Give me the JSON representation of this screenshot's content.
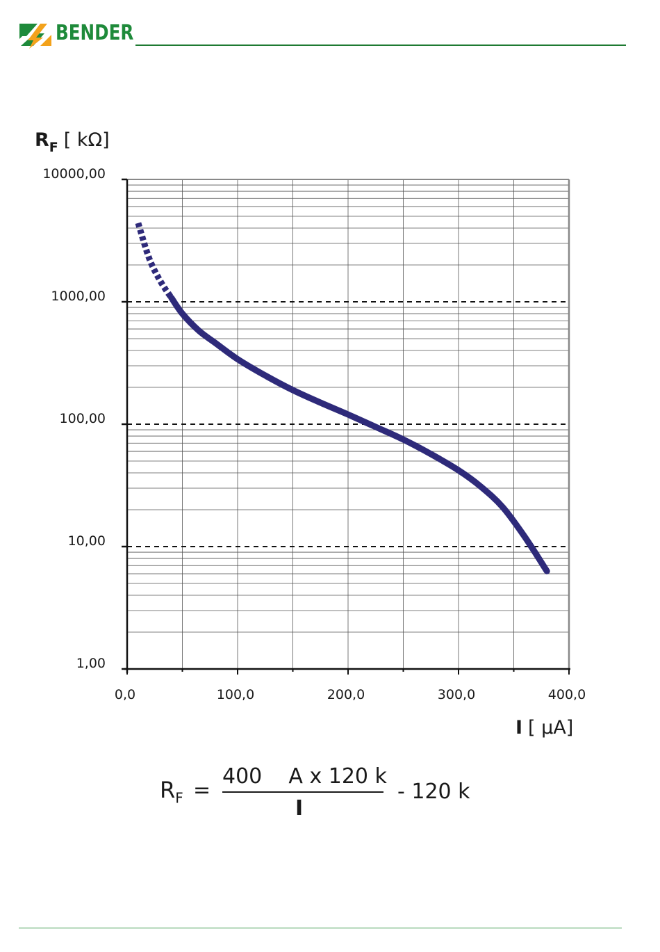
{
  "header": {
    "brand": "BENDER",
    "logo_colors": {
      "green": "#1e8a3a",
      "orange": "#f3a21b"
    }
  },
  "chart_data": {
    "type": "line",
    "ylabel_main": "R",
    "ylabel_sub": "F",
    "ylabel_unit": "[ kΩ]",
    "xlabel_main": "I",
    "xlabel_unit": "[ µA]",
    "y_scale": "log",
    "ylim": [
      1,
      10000
    ],
    "xlim": [
      0,
      400
    ],
    "x_ticks": [
      "0,0",
      "100,0",
      "200,0",
      "300,0",
      "400,0"
    ],
    "y_ticks": [
      "1,00",
      "10,00",
      "100,00",
      "1000,00",
      "10000,00"
    ],
    "grid": true,
    "dashed_reference_lines": [
      10,
      100,
      1000
    ],
    "series": [
      {
        "style": "dotted",
        "color": "#2e2a7a",
        "x": [
          10,
          20,
          30,
          40
        ],
        "y": [
          4400,
          2260,
          1480,
          1080
        ]
      },
      {
        "style": "solid",
        "color": "#2e2a7a",
        "x": [
          40,
          50,
          65,
          80,
          100,
          125,
          150,
          175,
          200,
          225,
          250,
          275,
          300,
          320,
          340,
          360,
          380
        ],
        "y": [
          1080,
          800,
          580,
          460,
          340,
          250,
          190,
          150,
          120,
          95,
          75,
          57,
          42,
          31,
          21,
          12,
          6.3
        ]
      }
    ]
  },
  "formula": {
    "lhs": "R",
    "lhs_sub": "F",
    "equals": "=",
    "numerator": "400    A x 120 k",
    "denominator": "I",
    "tail": "- 120 k"
  }
}
